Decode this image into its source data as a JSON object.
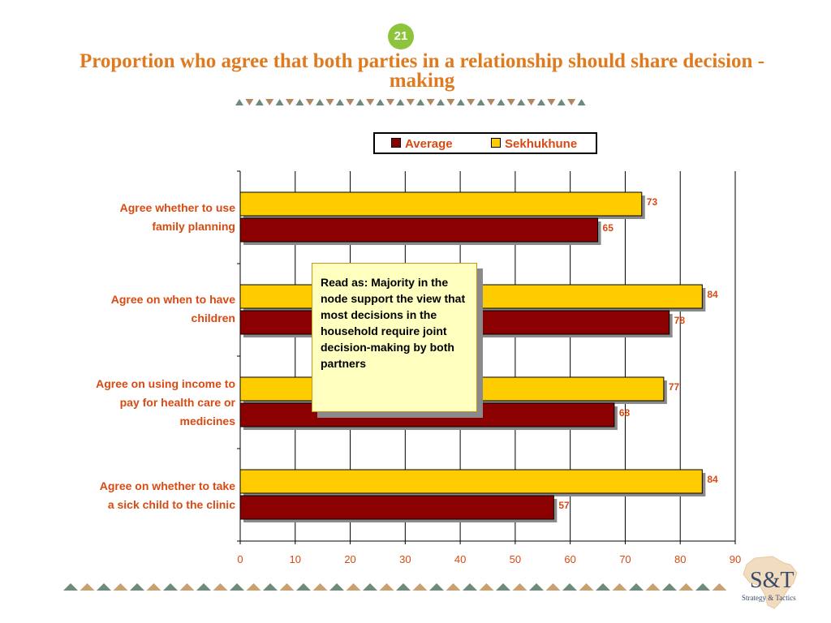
{
  "page_number": "21",
  "title": "Proportion who agree that both parties in a relationship should share decision - making",
  "legend": {
    "items": [
      "Average",
      "Sekhukhune"
    ]
  },
  "note": "Read as: Majority in the node support the view that most decisions in the household require joint decision-making by both partners",
  "logo": {
    "main": "S&T",
    "sub": "Strategy & Tactics"
  },
  "colors": {
    "average": "#8b0000",
    "sekhukhune": "#ffcc00",
    "accent": "#d84a12",
    "title": "#e07a1f",
    "badge": "#8cc43c"
  },
  "chart_data": {
    "type": "bar",
    "orientation": "horizontal",
    "categories": [
      "Agree whether to use\nfamily planning",
      "Agree on when to have\nchildren",
      "Agree on using income to\npay for health care or\nmedicines",
      "Agree on whether to take\na sick child to the clinic"
    ],
    "series": [
      {
        "name": "Sekhukhune",
        "values": [
          73,
          84,
          77,
          84
        ]
      },
      {
        "name": "Average",
        "values": [
          65,
          78,
          68,
          57
        ]
      }
    ],
    "xlim": [
      0,
      90
    ],
    "xticks": [
      0,
      10,
      20,
      30,
      40,
      50,
      60,
      70,
      80,
      90
    ],
    "grid": true,
    "legend_position": "top"
  }
}
